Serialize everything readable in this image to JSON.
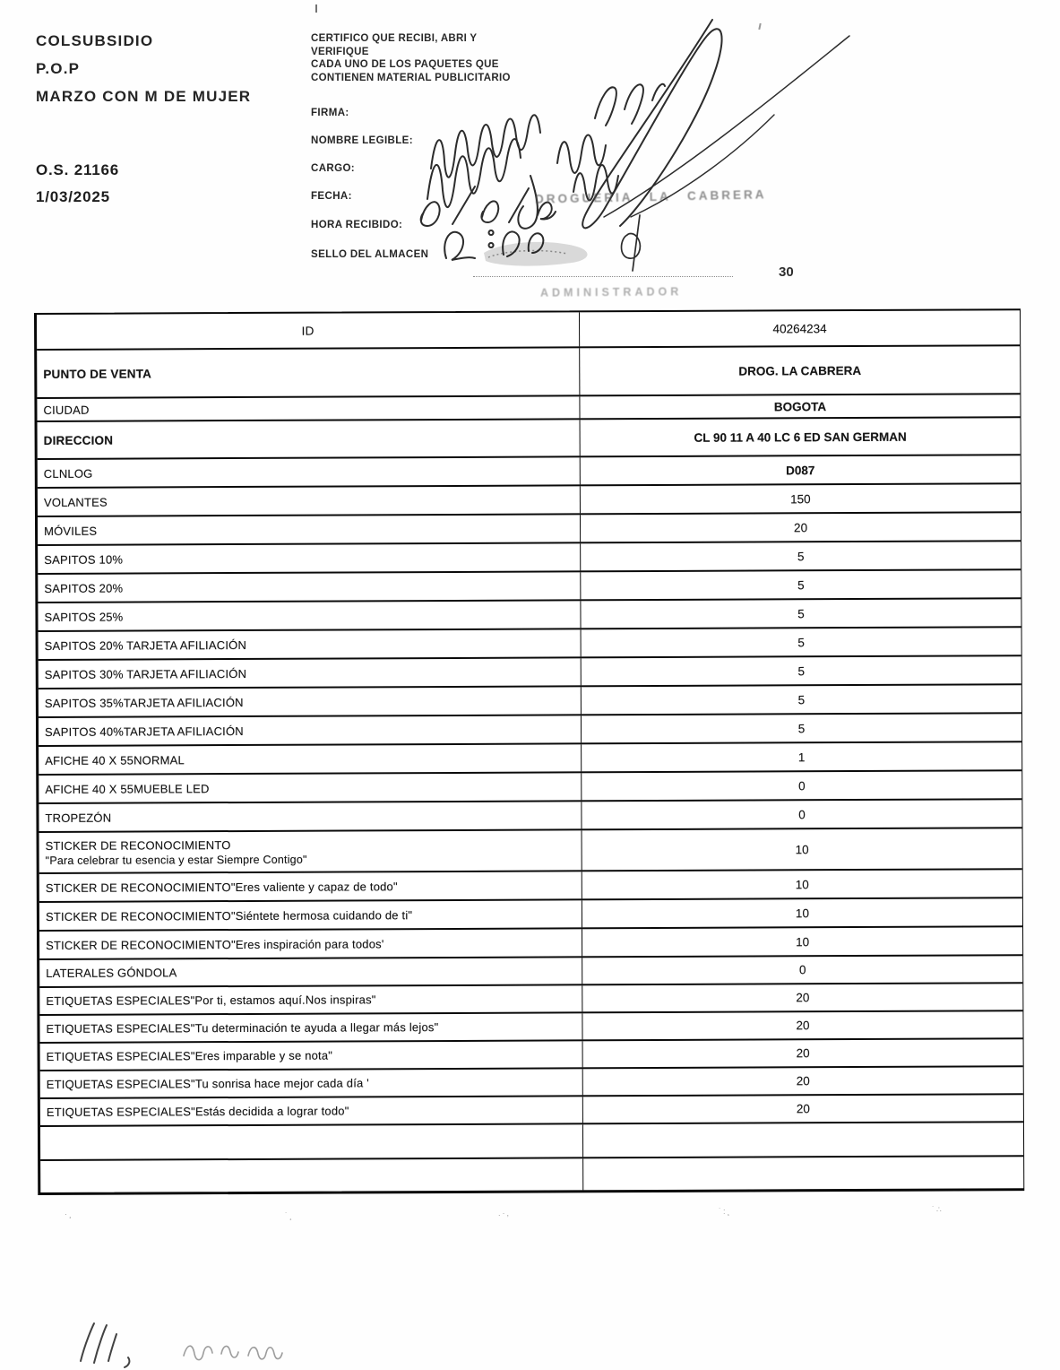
{
  "document": {
    "title_block": {
      "company": "COLSUBSIDIO",
      "program": "P.O.P",
      "campaign": "MARZO CON M DE MUJER",
      "order_number": "O.S. 21166",
      "order_date": "1/03/2025"
    },
    "certification": {
      "statement_lines": [
        "CERTIFICO QUE RECIBI, ABRI Y",
        "VERIFIQUE",
        "CADA UNO DE LOS PAQUETES QUE",
        "CONTIENEN MATERIAL PUBLICITARIO"
      ],
      "fields": [
        "FIRMA:",
        "NOMBRE LEGIBLE:",
        "CARGO:",
        "FECHA:",
        "HORA RECIBIDO:",
        "SELLO DEL ALMACEN"
      ]
    },
    "annotations": {
      "stamp_text": "DROGUERIA LA CABRERA",
      "faint_stamp_text": "ADMINISTRADOR",
      "page_note": "30"
    }
  },
  "table": {
    "rows": [
      {
        "label": "ID",
        "value": "40264234",
        "cls": "r-id"
      },
      {
        "label": "PUNTO DE VENTA",
        "value": "DROG. LA CABRERA",
        "cls": "r-tall bold"
      },
      {
        "label": "CIUDAD",
        "value": "BOGOTA",
        "cls": "r-short bold-value"
      },
      {
        "label": "DIRECCION",
        "value": "CL 90 11 A 40 LC 6 ED SAN GERMAN",
        "cls": "r-med bold"
      },
      {
        "label": "CLNLOG",
        "value": "D087",
        "cls": "bold-value"
      },
      {
        "label": "VOLANTES",
        "value": "150"
      },
      {
        "label": "MÓVILES",
        "value": "20"
      },
      {
        "label": "SAPITOS 10%",
        "value": "5"
      },
      {
        "label": "SAPITOS 20%",
        "value": "5"
      },
      {
        "label": "SAPITOS 25%",
        "value": "5"
      },
      {
        "label": "SAPITOS 20% TARJETA AFILIACIÓN",
        "value": "5"
      },
      {
        "label": "SAPITOS 30% TARJETA AFILIACIÓN",
        "value": "5"
      },
      {
        "label": "SAPITOS 35%TARJETA AFILIACIÓN",
        "value": "5"
      },
      {
        "label": "SAPITOS 40%TARJETA AFILIACIÓN",
        "value": "5"
      },
      {
        "label": "AFICHE 40 X 55NORMAL",
        "value": "1"
      },
      {
        "label": "AFICHE 40 X 55MUEBLE LED",
        "value": "0"
      },
      {
        "label": "TROPEZÓN",
        "value": "0"
      },
      {
        "label": "STICKER DE RECONOCIMIENTO",
        "label2": "\"Para celebrar tu esencia y estar Siempre Contigo\"",
        "value": "10",
        "cls": "r-two"
      },
      {
        "label": "STICKER DE RECONOCIMIENTO\"Eres valiente y capaz de todo\"",
        "value": "10"
      },
      {
        "label": "STICKER DE RECONOCIMIENTO\"Siéntete hermosa cuidando de ti\"",
        "value": "10"
      },
      {
        "label": "STICKER DE RECONOCIMIENTO\"Eres inspiración para todos'",
        "value": "10"
      },
      {
        "label": "LATERALES GÓNDOLA",
        "value": "0",
        "cls": "r-sm"
      },
      {
        "label": "ETIQUETAS ESPECIALES\"Por ti, estamos aquí.Nos inspiras\"",
        "value": "20",
        "cls": "r-sm"
      },
      {
        "label": "ETIQUETAS ESPECIALES\"Tu determinación te ayuda a llegar más lejos\"",
        "value": "20",
        "cls": "r-sm"
      },
      {
        "label": "ETIQUETAS ESPECIALES\"Eres imparable y se nota\"",
        "value": "20",
        "cls": "r-sm"
      },
      {
        "label": "ETIQUETAS ESPECIALES\"Tu sonrisa hace mejor cada día '",
        "value": "20",
        "cls": "r-sm"
      },
      {
        "label": "ETIQUETAS ESPECIALES\"Estás decidida a lograr todo\"",
        "value": "20",
        "cls": "r-sm"
      },
      {
        "label": "",
        "value": "",
        "cls": "r-empty1"
      },
      {
        "label": "",
        "value": "",
        "cls": "r-empty2"
      }
    ]
  }
}
